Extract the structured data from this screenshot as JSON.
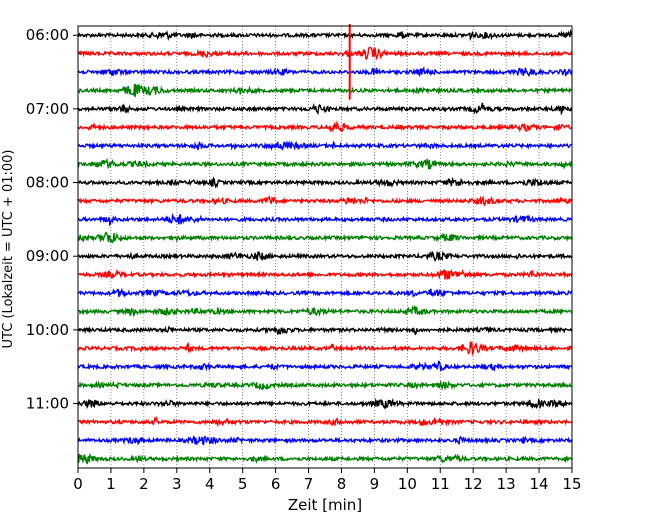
{
  "chart_data": {
    "type": "line",
    "xlabel": "Zeit  [min]",
    "ylabel": "UTC (Lokalzeit = UTC + 01:00)",
    "xlim": [
      0,
      15
    ],
    "xticks": [
      0,
      1,
      2,
      3,
      4,
      5,
      6,
      7,
      8,
      9,
      10,
      11,
      12,
      13,
      14,
      15
    ],
    "ylim": [
      -0.5,
      23.5
    ],
    "yticks": [
      {
        "pos": 0,
        "label": "06:00"
      },
      {
        "pos": 4,
        "label": "07:00"
      },
      {
        "pos": 8,
        "label": "08:00"
      },
      {
        "pos": 12,
        "label": "09:00"
      },
      {
        "pos": 16,
        "label": "10:00"
      },
      {
        "pos": 20,
        "label": "11:00"
      }
    ],
    "grid": "vertical dotted",
    "trace_interval_min": 15,
    "trace_colors": [
      "#000000",
      "#ff0000",
      "#0000ff",
      "#008000"
    ],
    "trace_count": 24,
    "events": [
      {
        "trace": 0,
        "x": 8.25,
        "amplitude": "large spike spanning traces 0-3"
      }
    ]
  }
}
